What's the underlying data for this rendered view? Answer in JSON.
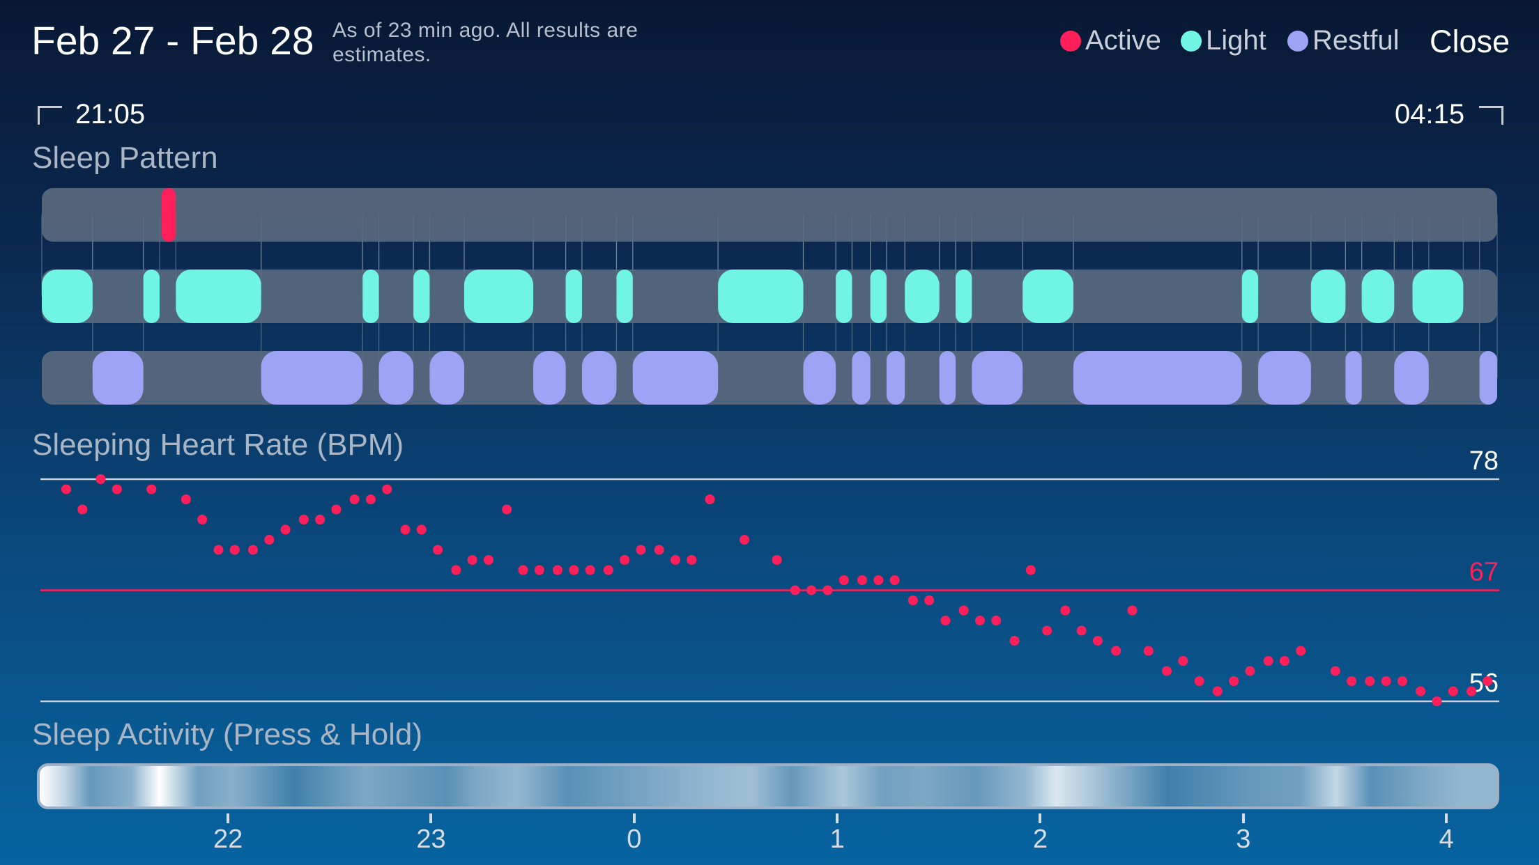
{
  "header": {
    "title": "Feb 27 - Feb 28",
    "subtitle": "As of 23 min ago. All results are estimates.",
    "close_label": "Close"
  },
  "legend": [
    {
      "label": "Active",
      "color": "#ff1f5a"
    },
    {
      "label": "Light",
      "color": "#6ff5e2"
    },
    {
      "label": "Restful",
      "color": "#9fa3f5"
    }
  ],
  "range": {
    "start": "21:05",
    "end": "04:15"
  },
  "sections": {
    "sleep_pattern": "Sleep Pattern",
    "heart_rate": "Sleeping Heart Rate (BPM)",
    "activity": "Sleep Activity (Press & Hold)"
  },
  "heart_rate_levels": {
    "max": "78",
    "avg": "67",
    "min": "56"
  },
  "axis_ticks": [
    "22",
    "23",
    "0",
    "1",
    "2",
    "3",
    "4"
  ],
  "colors": {
    "active": "#ff1f5a",
    "light": "#6ff5e2",
    "restful": "#9fa3f5",
    "track": "#5a6a80",
    "avg_line": "#ff1f5a"
  },
  "chart_data": [
    {
      "type": "timeline",
      "title": "Sleep Pattern",
      "x_unit": "hours since 21:05",
      "x_range": [
        0,
        7.167
      ],
      "rows": [
        {
          "name": "Active",
          "segments": [
            [
              0.59,
              0.66
            ]
          ]
        },
        {
          "name": "Light",
          "segments": [
            [
              0.0,
              0.25
            ],
            [
              0.5,
              0.58
            ],
            [
              0.66,
              1.08
            ],
            [
              1.58,
              1.66
            ],
            [
              1.83,
              1.91
            ],
            [
              2.08,
              2.42
            ],
            [
              2.58,
              2.66
            ],
            [
              2.83,
              2.91
            ],
            [
              3.33,
              3.75
            ],
            [
              3.91,
              3.99
            ],
            [
              4.08,
              4.16
            ],
            [
              4.25,
              4.42
            ],
            [
              4.5,
              4.58
            ],
            [
              4.83,
              5.08
            ],
            [
              5.91,
              5.99
            ],
            [
              6.25,
              6.42
            ],
            [
              6.5,
              6.66
            ],
            [
              6.75,
              7.0
            ]
          ]
        },
        {
          "name": "Restful",
          "segments": [
            [
              0.25,
              0.5
            ],
            [
              1.08,
              1.58
            ],
            [
              1.66,
              1.83
            ],
            [
              1.91,
              2.08
            ],
            [
              2.42,
              2.58
            ],
            [
              2.66,
              2.83
            ],
            [
              2.91,
              3.33
            ],
            [
              3.75,
              3.91
            ],
            [
              3.99,
              4.08
            ],
            [
              4.16,
              4.25
            ],
            [
              4.42,
              4.5
            ],
            [
              4.58,
              4.83
            ],
            [
              5.08,
              5.91
            ],
            [
              5.99,
              6.25
            ],
            [
              6.42,
              6.5
            ],
            [
              6.66,
              6.83
            ],
            [
              7.08,
              7.167
            ]
          ]
        }
      ]
    },
    {
      "type": "scatter",
      "title": "Sleeping Heart Rate (BPM)",
      "ylim": [
        56,
        78
      ],
      "reference_lines": [
        78,
        67,
        56
      ],
      "x_unit": "hours since 21:05",
      "xlim": [
        0,
        7.167
      ],
      "points": [
        [
          0.12,
          77
        ],
        [
          0.2,
          75
        ],
        [
          0.29,
          78
        ],
        [
          0.37,
          77
        ],
        [
          0.54,
          77
        ],
        [
          0.71,
          76
        ],
        [
          0.79,
          74
        ],
        [
          0.87,
          71
        ],
        [
          0.95,
          71
        ],
        [
          1.04,
          71
        ],
        [
          1.12,
          72
        ],
        [
          1.2,
          73
        ],
        [
          1.29,
          74
        ],
        [
          1.37,
          74
        ],
        [
          1.45,
          75
        ],
        [
          1.54,
          76
        ],
        [
          1.62,
          76
        ],
        [
          1.7,
          77
        ],
        [
          1.79,
          73
        ],
        [
          1.87,
          73
        ],
        [
          1.95,
          71
        ],
        [
          2.04,
          69
        ],
        [
          2.12,
          70
        ],
        [
          2.2,
          70
        ],
        [
          2.29,
          75
        ],
        [
          2.37,
          69
        ],
        [
          2.45,
          69
        ],
        [
          2.54,
          69
        ],
        [
          2.62,
          69
        ],
        [
          2.7,
          69
        ],
        [
          2.79,
          69
        ],
        [
          2.87,
          70
        ],
        [
          2.95,
          71
        ],
        [
          3.04,
          71
        ],
        [
          3.12,
          70
        ],
        [
          3.2,
          70
        ],
        [
          3.29,
          76
        ],
        [
          3.46,
          72
        ],
        [
          3.62,
          70
        ],
        [
          3.71,
          67
        ],
        [
          3.79,
          67
        ],
        [
          3.87,
          67
        ],
        [
          3.95,
          68
        ],
        [
          4.04,
          68
        ],
        [
          4.12,
          68
        ],
        [
          4.2,
          68
        ],
        [
          4.29,
          66
        ],
        [
          4.37,
          66
        ],
        [
          4.45,
          64
        ],
        [
          4.54,
          65
        ],
        [
          4.62,
          64
        ],
        [
          4.7,
          64
        ],
        [
          4.79,
          62
        ],
        [
          4.87,
          69
        ],
        [
          4.95,
          63
        ],
        [
          5.04,
          65
        ],
        [
          5.12,
          63
        ],
        [
          5.2,
          62
        ],
        [
          5.29,
          61
        ],
        [
          5.37,
          65
        ],
        [
          5.45,
          61
        ],
        [
          5.54,
          59
        ],
        [
          5.62,
          60
        ],
        [
          5.7,
          58
        ],
        [
          5.79,
          57
        ],
        [
          5.87,
          58
        ],
        [
          5.95,
          59
        ],
        [
          6.04,
          60
        ],
        [
          6.12,
          60
        ],
        [
          6.2,
          61
        ],
        [
          6.37,
          59
        ],
        [
          6.45,
          58
        ],
        [
          6.54,
          58
        ],
        [
          6.62,
          58
        ],
        [
          6.7,
          58
        ],
        [
          6.79,
          57
        ],
        [
          6.87,
          56
        ],
        [
          6.95,
          57
        ],
        [
          7.04,
          57
        ],
        [
          7.12,
          58
        ]
      ]
    },
    {
      "type": "heatmap",
      "title": "Sleep Activity (Press & Hold)",
      "x_unit": "hours since 21:05",
      "xlim": [
        0,
        7.167
      ],
      "intensity": [
        [
          0.0,
          1.0
        ],
        [
          0.12,
          0.75
        ],
        [
          0.25,
          0.35
        ],
        [
          0.45,
          0.5
        ],
        [
          0.59,
          1.0
        ],
        [
          0.78,
          0.4
        ],
        [
          0.95,
          0.5
        ],
        [
          1.25,
          0.2
        ],
        [
          1.6,
          0.45
        ],
        [
          2.0,
          0.3
        ],
        [
          2.15,
          0.45
        ],
        [
          2.35,
          0.55
        ],
        [
          2.6,
          0.3
        ],
        [
          3.3,
          0.55
        ],
        [
          3.5,
          0.6
        ],
        [
          3.7,
          0.35
        ],
        [
          3.95,
          0.65
        ],
        [
          4.15,
          0.4
        ],
        [
          4.35,
          0.45
        ],
        [
          4.6,
          0.35
        ],
        [
          4.85,
          0.55
        ],
        [
          5.0,
          0.85
        ],
        [
          5.55,
          0.2
        ],
        [
          5.95,
          0.35
        ],
        [
          6.2,
          0.4
        ],
        [
          6.38,
          0.75
        ],
        [
          6.55,
          0.3
        ],
        [
          6.8,
          0.45
        ],
        [
          7.0,
          0.55
        ]
      ]
    }
  ]
}
